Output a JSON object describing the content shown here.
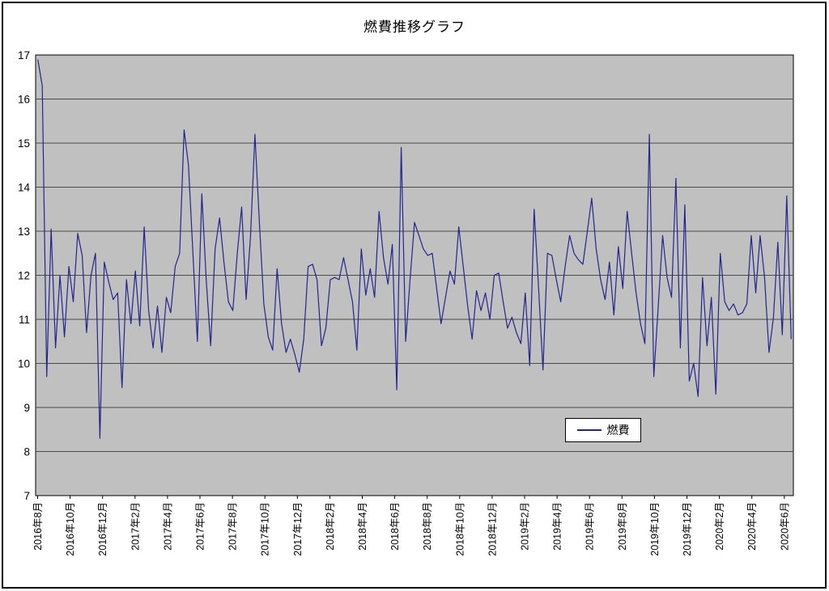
{
  "title": "燃費推移グラフ",
  "legend": {
    "label": "燃費"
  },
  "chart_data": {
    "type": "line",
    "title": "燃費推移グラフ",
    "xlabel": "",
    "ylabel": "",
    "ylim": [
      7,
      17
    ],
    "y_ticks": [
      17,
      16,
      15,
      14,
      13,
      12,
      11,
      10,
      9,
      8,
      7
    ],
    "x_axis_type": "category (individual refuelings, labels shown every 2 months)",
    "x_tick_labels": [
      "2016年8月",
      "2016年10月",
      "2016年12月",
      "2017年2月",
      "2017年4月",
      "2017年6月",
      "2017年8月",
      "2017年10月",
      "2017年12月",
      "2018年2月",
      "2018年4月",
      "2018年6月",
      "2018年8月",
      "2018年10月",
      "2018年12月",
      "2019年2月",
      "2019年4月",
      "2019年6月",
      "2019年8月",
      "2019年10月",
      "2019年12月",
      "2020年2月",
      "2020年4月",
      "2020年6月"
    ],
    "grid": "horizontal",
    "legend": {
      "label": "燃費",
      "position": "inside-right-lower"
    },
    "colors": {
      "line": "#24248f",
      "plot_background": "#c0c0c0",
      "gridline": "#4a4a4a",
      "frame": "#000000"
    },
    "series": [
      {
        "name": "燃費",
        "values": [
          16.9,
          16.3,
          9.7,
          13.05,
          10.35,
          12.0,
          10.6,
          12.2,
          11.4,
          12.95,
          12.45,
          10.7,
          12.0,
          12.5,
          8.3,
          12.3,
          11.85,
          11.45,
          11.6,
          9.45,
          11.9,
          10.9,
          12.1,
          10.85,
          13.1,
          11.2,
          10.35,
          11.3,
          10.25,
          11.5,
          11.15,
          12.2,
          12.5,
          15.3,
          14.5,
          12.5,
          10.5,
          13.85,
          11.9,
          10.4,
          12.6,
          13.3,
          12.3,
          11.4,
          11.2,
          12.5,
          13.55,
          11.45,
          12.9,
          15.2,
          13.2,
          11.35,
          10.6,
          10.3,
          12.15,
          10.9,
          10.25,
          10.55,
          10.2,
          9.8,
          10.55,
          12.2,
          12.25,
          11.9,
          10.4,
          10.8,
          11.9,
          11.95,
          11.9,
          12.4,
          11.9,
          11.4,
          10.3,
          12.6,
          11.55,
          12.15,
          11.5,
          13.45,
          12.4,
          11.8,
          12.7,
          9.4,
          14.9,
          10.5,
          11.9,
          13.2,
          12.9,
          12.6,
          12.45,
          12.5,
          11.7,
          10.9,
          11.5,
          12.1,
          11.8,
          13.1,
          12.2,
          11.3,
          10.55,
          11.65,
          11.2,
          11.6,
          11.0,
          12.0,
          12.05,
          11.4,
          10.8,
          11.05,
          10.7,
          10.45,
          11.6,
          9.95,
          13.5,
          11.7,
          9.85,
          12.5,
          12.45,
          11.9,
          11.4,
          12.2,
          12.9,
          12.5,
          12.35,
          12.25,
          13.0,
          13.75,
          12.6,
          11.9,
          11.45,
          12.3,
          11.1,
          12.65,
          11.7,
          13.45,
          12.5,
          11.6,
          10.9,
          10.45,
          15.2,
          9.7,
          11.3,
          12.9,
          11.95,
          11.5,
          14.2,
          10.35,
          13.6,
          9.6,
          10.0,
          9.25,
          11.95,
          10.4,
          11.5,
          9.3,
          12.5,
          11.4,
          11.2,
          11.35,
          11.1,
          11.15,
          11.35,
          12.9,
          11.6,
          12.9,
          11.95,
          10.25,
          11.05,
          12.75,
          10.65,
          13.8,
          10.55
        ]
      }
    ]
  }
}
